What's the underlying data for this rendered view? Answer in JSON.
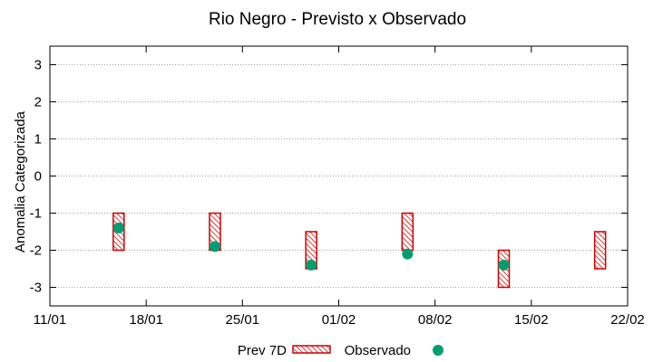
{
  "chart_data": {
    "type": "interval",
    "title": "Rio Negro - Previsto x Observado",
    "ylabel": "Anomalia Categorizada",
    "xlabel": "",
    "ylim": [
      -3.5,
      3.5
    ],
    "y_ticks": [
      3,
      2,
      1,
      0,
      -1,
      -2,
      -3
    ],
    "y_tick_labels": [
      "3",
      "2",
      "1",
      "0",
      "-1",
      "-2",
      "-3"
    ],
    "x_range_days": [
      0,
      42
    ],
    "x_ticks_days": [
      0,
      7,
      14,
      21,
      28,
      35,
      42
    ],
    "x_tick_labels": [
      "11/01",
      "18/01",
      "25/01",
      "01/02",
      "08/02",
      "15/02",
      "22/02"
    ],
    "grid": true,
    "forecast_series": {
      "name": "Prev 7D",
      "color": "#cc0000",
      "points": [
        {
          "day": 5,
          "low": -2,
          "high": -1
        },
        {
          "day": 12,
          "low": -2,
          "high": -1
        },
        {
          "day": 19,
          "low": -2.5,
          "high": -1.5
        },
        {
          "day": 26,
          "low": -2,
          "high": -1
        },
        {
          "day": 33,
          "low": -3,
          "high": -2
        },
        {
          "day": 40,
          "low": -2.5,
          "high": -1.5
        }
      ]
    },
    "observed_series": {
      "name": "Observado",
      "color": "#009e73",
      "points": [
        {
          "day": 5,
          "value": -1.4
        },
        {
          "day": 12,
          "value": -1.9
        },
        {
          "day": 19,
          "value": -2.4
        },
        {
          "day": 26,
          "value": -2.1
        },
        {
          "day": 33,
          "value": -2.4
        }
      ]
    },
    "legend_position": "bottom"
  }
}
